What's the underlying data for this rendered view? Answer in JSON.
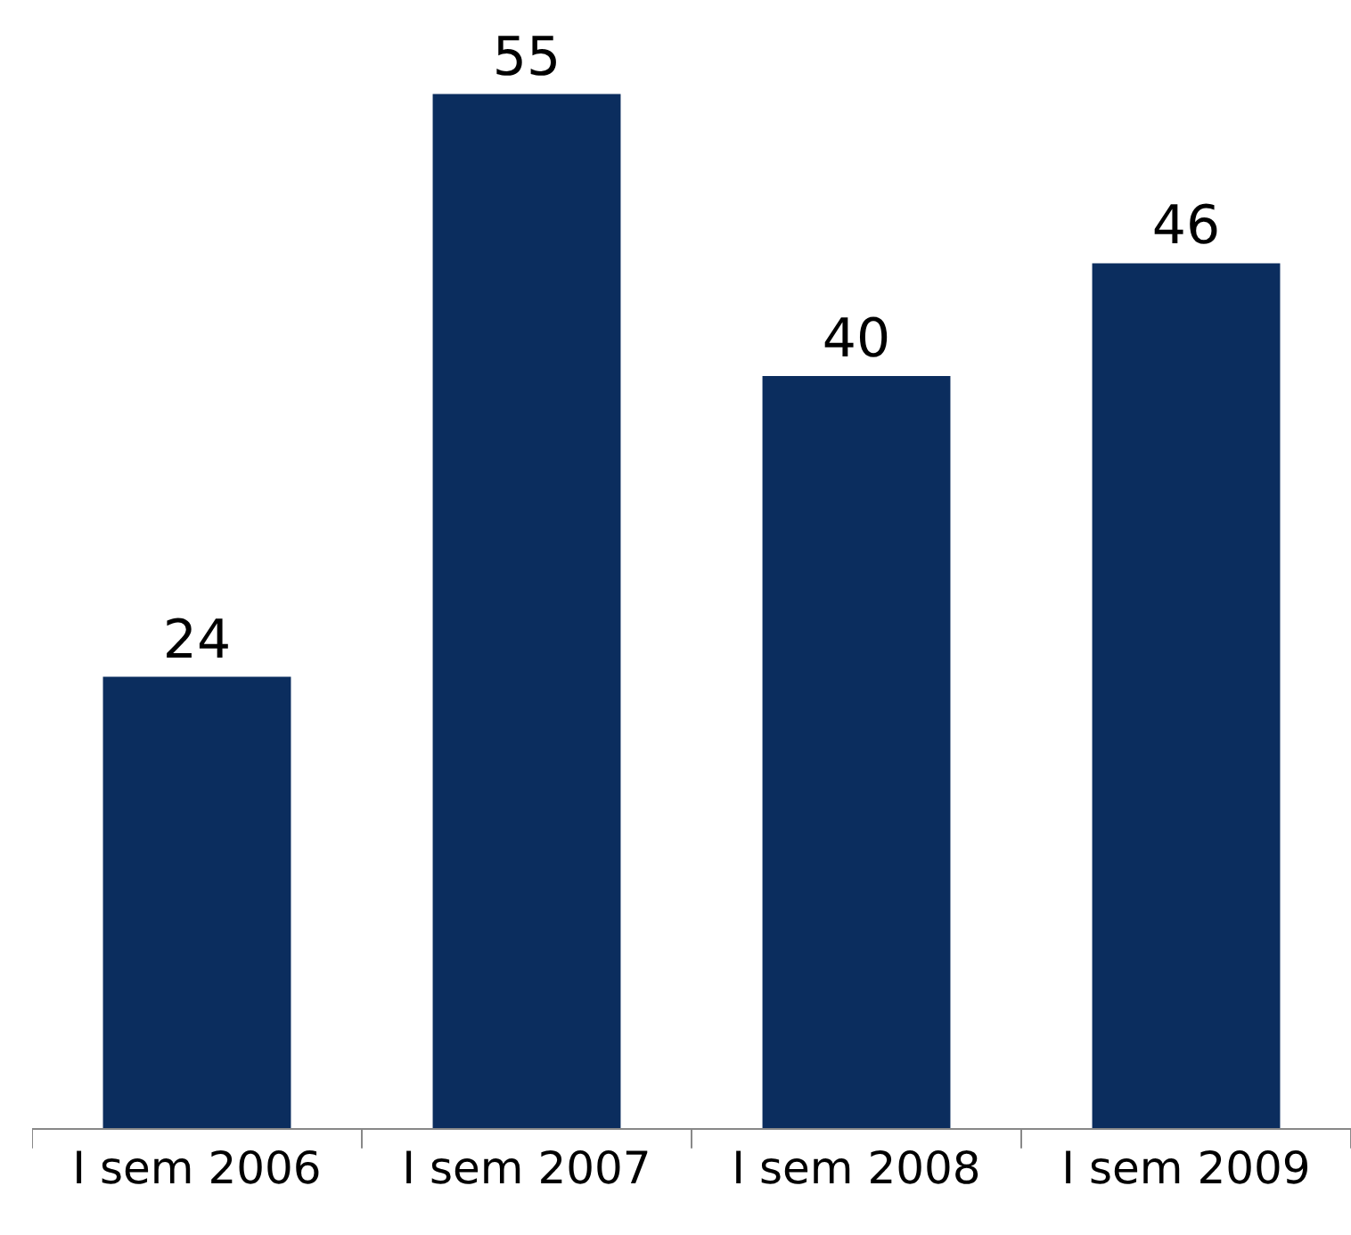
{
  "chart_data": {
    "type": "bar",
    "categories": [
      "I sem 2006",
      "I sem 2007",
      "I sem 2008",
      "I sem 2009"
    ],
    "values": [
      24,
      55,
      40,
      46
    ],
    "color": "#0b2d5e",
    "data_labels": true,
    "ylim": [
      0,
      60
    ]
  }
}
